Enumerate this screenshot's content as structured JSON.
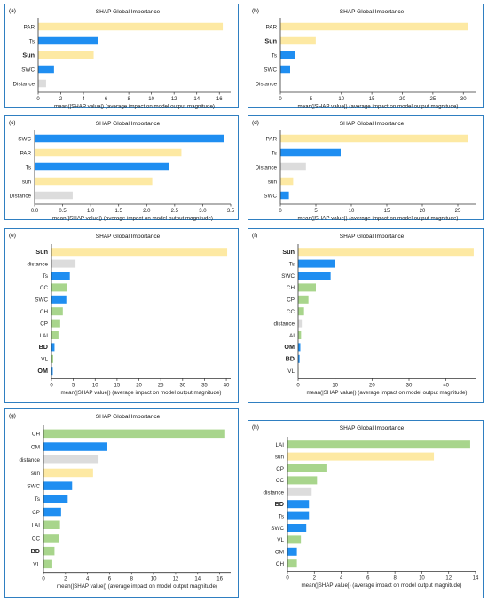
{
  "colors": {
    "yellow": "#fde9a3",
    "blue": "#1f8ef1",
    "gray": "#dcdcdc",
    "green": "#a8d58c",
    "border": "#2f7fc1",
    "axis": "#333333"
  },
  "chart_data": [
    {
      "type": "bar",
      "letter": "(a)",
      "title": "SHAP Global Importance",
      "xlabel": "mean(|SHAP value|) (average impact on model output magnitude)",
      "categories": [
        "PAR",
        "Ts",
        "Sun",
        "SWC",
        "Distance"
      ],
      "values": [
        16.3,
        5.3,
        4.9,
        1.4,
        0.7
      ],
      "color_keys": [
        "yellow",
        "blue",
        "yellow",
        "blue",
        "gray"
      ],
      "bold": [
        false,
        false,
        true,
        false,
        false
      ],
      "xlim": [
        0,
        17
      ],
      "ticks": [
        0,
        2,
        4,
        6,
        8,
        10,
        12,
        14,
        16
      ]
    },
    {
      "type": "bar",
      "letter": "(b)",
      "title": "SHAP Global Importance",
      "xlabel": "mean(|SHAP value|) (average impact on model output magnitude)",
      "categories": [
        "PAR",
        "Sun",
        "Ts",
        "SWC",
        "Distance"
      ],
      "values": [
        30.8,
        5.8,
        2.4,
        1.6,
        0
      ],
      "color_keys": [
        "yellow",
        "yellow",
        "blue",
        "blue",
        "gray"
      ],
      "bold": [
        false,
        true,
        false,
        false,
        false
      ],
      "xlim": [
        0,
        32
      ],
      "ticks": [
        0,
        5,
        10,
        15,
        20,
        25,
        30
      ]
    },
    {
      "type": "bar",
      "letter": "(c)",
      "title": "SHAP Global Importance",
      "xlabel": "mean(|SHAP value|) (average impact on model output magnitude)",
      "categories": [
        "SWC",
        "PAR",
        "Ts",
        "sun",
        "Distance"
      ],
      "values": [
        3.38,
        2.62,
        2.4,
        2.1,
        0.68
      ],
      "color_keys": [
        "blue",
        "yellow",
        "blue",
        "yellow",
        "gray"
      ],
      "bold": [
        false,
        false,
        false,
        false,
        false
      ],
      "xlim": [
        0,
        3.5
      ],
      "ticks": [
        0.0,
        0.5,
        1.0,
        1.5,
        2.0,
        2.5,
        3.0,
        3.5
      ]
    },
    {
      "type": "bar",
      "letter": "(d)",
      "title": "SHAP Global Importance",
      "xlabel": "mean(|SHAP value|) (average impact on model output magnitude)",
      "categories": [
        "PAR",
        "Ts",
        "Distance",
        "sun",
        "SWC"
      ],
      "values": [
        26.5,
        8.5,
        3.6,
        1.8,
        1.2
      ],
      "color_keys": [
        "yellow",
        "blue",
        "gray",
        "yellow",
        "blue"
      ],
      "bold": [
        false,
        false,
        false,
        false,
        false
      ],
      "xlim": [
        0,
        27.5
      ],
      "ticks": [
        0,
        5,
        10,
        15,
        20,
        25
      ]
    },
    {
      "type": "bar",
      "letter": "(e)",
      "title": "SHAP Global Importance",
      "xlabel": "mean(|SHAP value|) (average impact on model output magnitude)",
      "categories": [
        "Sun",
        "distance",
        "Ts",
        "CC",
        "SWC",
        "CH",
        "CP",
        "LAI",
        "BD",
        "VL",
        "OM"
      ],
      "values": [
        40.2,
        5.5,
        4.2,
        3.5,
        3.4,
        2.6,
        2.0,
        1.6,
        0.7,
        0.4,
        0.3
      ],
      "color_keys": [
        "yellow",
        "gray",
        "blue",
        "green",
        "blue",
        "green",
        "green",
        "green",
        "blue",
        "green",
        "blue"
      ],
      "bold": [
        true,
        false,
        false,
        false,
        false,
        false,
        false,
        false,
        true,
        false,
        true
      ],
      "xlim": [
        0,
        41
      ],
      "ticks": [
        0,
        5,
        10,
        15,
        20,
        25,
        30,
        35,
        40
      ]
    },
    {
      "type": "bar",
      "letter": "(f)",
      "title": "SHAP Global Importance",
      "xlabel": "mean(|SHAP value|) (average impact on model output magnitude)",
      "categories": [
        "Sun",
        "Ts",
        "SWC",
        "CH",
        "CP",
        "CC",
        "distance",
        "LAI",
        "OM",
        "BD",
        "VL"
      ],
      "values": [
        47.5,
        10.0,
        8.8,
        4.8,
        2.8,
        1.6,
        1.0,
        0.8,
        0.6,
        0.4,
        0.1
      ],
      "color_keys": [
        "yellow",
        "blue",
        "blue",
        "green",
        "green",
        "green",
        "gray",
        "green",
        "blue",
        "blue",
        "green"
      ],
      "bold": [
        true,
        false,
        false,
        false,
        false,
        false,
        false,
        false,
        true,
        true,
        false
      ],
      "xlim": [
        0,
        48
      ],
      "ticks": [
        0,
        10,
        20,
        30,
        40
      ]
    },
    {
      "type": "bar",
      "letter": "(g)",
      "title": "SHAP Global Importance",
      "xlabel": "mean(|SHAP value|) (average impact on model output magnitude)",
      "categories": [
        "CH",
        "OM",
        "distance",
        "sun",
        "SWC",
        "Ts",
        "CP",
        "LAI",
        "CC",
        "BD",
        "VL"
      ],
      "values": [
        16.5,
        5.8,
        5.0,
        4.5,
        2.6,
        2.2,
        1.6,
        1.5,
        1.4,
        1.0,
        0.8
      ],
      "color_keys": [
        "green",
        "blue",
        "gray",
        "yellow",
        "blue",
        "blue",
        "blue",
        "green",
        "green",
        "green",
        "green"
      ],
      "bold": [
        false,
        false,
        false,
        false,
        false,
        false,
        false,
        false,
        false,
        true,
        false
      ],
      "xlim": [
        0,
        17
      ],
      "ticks": [
        0,
        2,
        4,
        6,
        8,
        10,
        12,
        14,
        16
      ]
    },
    {
      "type": "bar",
      "letter": "(h)",
      "title": "SHAP Global Importance",
      "xlabel": "mean(|SHAP value|) (average impact on model output magnitude)",
      "categories": [
        "LAI",
        "sun",
        "CP",
        "CC",
        "distance",
        "BD",
        "Ts",
        "SWC",
        "VL",
        "OM",
        "CH"
      ],
      "values": [
        13.6,
        10.9,
        2.9,
        2.2,
        1.8,
        1.6,
        1.6,
        1.4,
        1.0,
        0.7,
        0.7
      ],
      "color_keys": [
        "green",
        "yellow",
        "green",
        "green",
        "gray",
        "blue",
        "blue",
        "blue",
        "green",
        "blue",
        "green"
      ],
      "bold": [
        false,
        false,
        false,
        false,
        false,
        true,
        false,
        false,
        false,
        false,
        false
      ],
      "xlim": [
        0,
        14
      ],
      "ticks": [
        0,
        2,
        4,
        6,
        8,
        10,
        12,
        14
      ]
    }
  ]
}
